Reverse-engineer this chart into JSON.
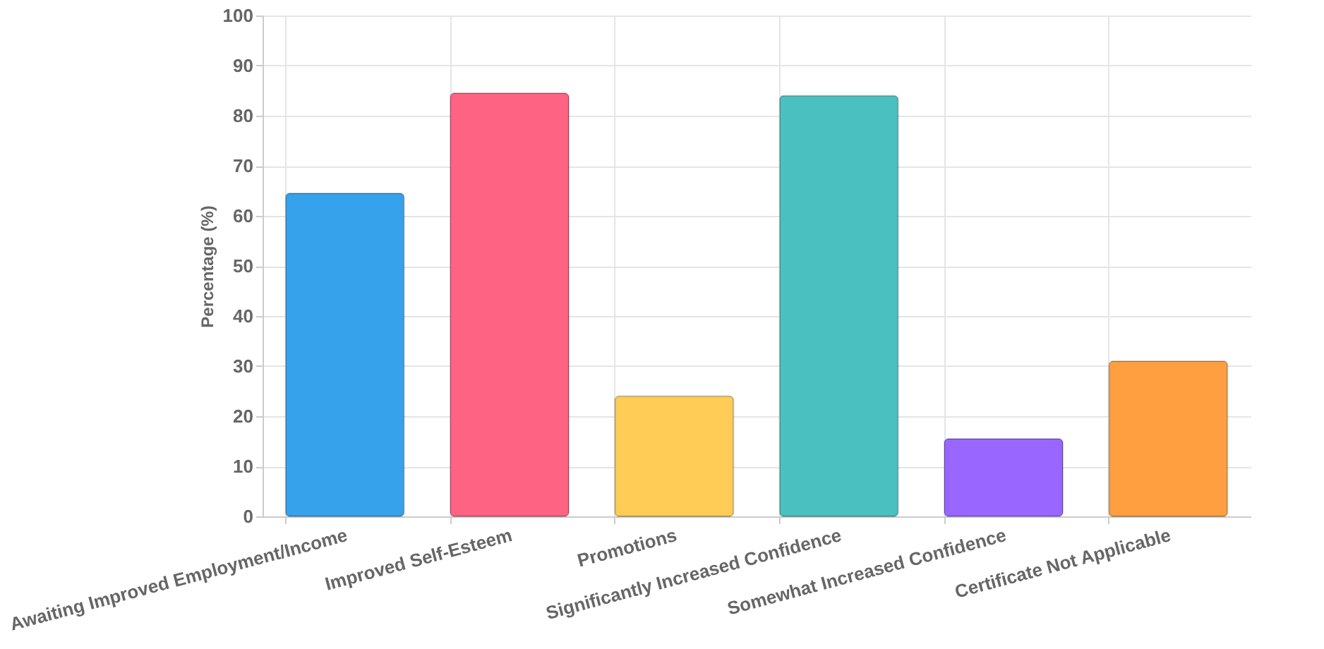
{
  "chart_data": {
    "type": "bar",
    "ylabel": "Percentage (%)",
    "categories": [
      "Awaiting Improved Employment/Income",
      "Improved Self-Esteem",
      "Promotions",
      "Significantly Increased Confidence",
      "Somewhat Increased Confidence",
      "Certificate Not Applicable"
    ],
    "values": [
      64.5,
      84.5,
      24,
      84,
      15.5,
      31
    ],
    "colors": [
      "#36a2eb",
      "#ff6384",
      "#ffcd56",
      "#4bc0c0",
      "#9966ff",
      "#ff9f40"
    ],
    "ylim": [
      0,
      100
    ],
    "yticks": [
      0,
      10,
      20,
      30,
      40,
      50,
      60,
      70,
      80,
      90,
      100
    ],
    "grid": true
  }
}
